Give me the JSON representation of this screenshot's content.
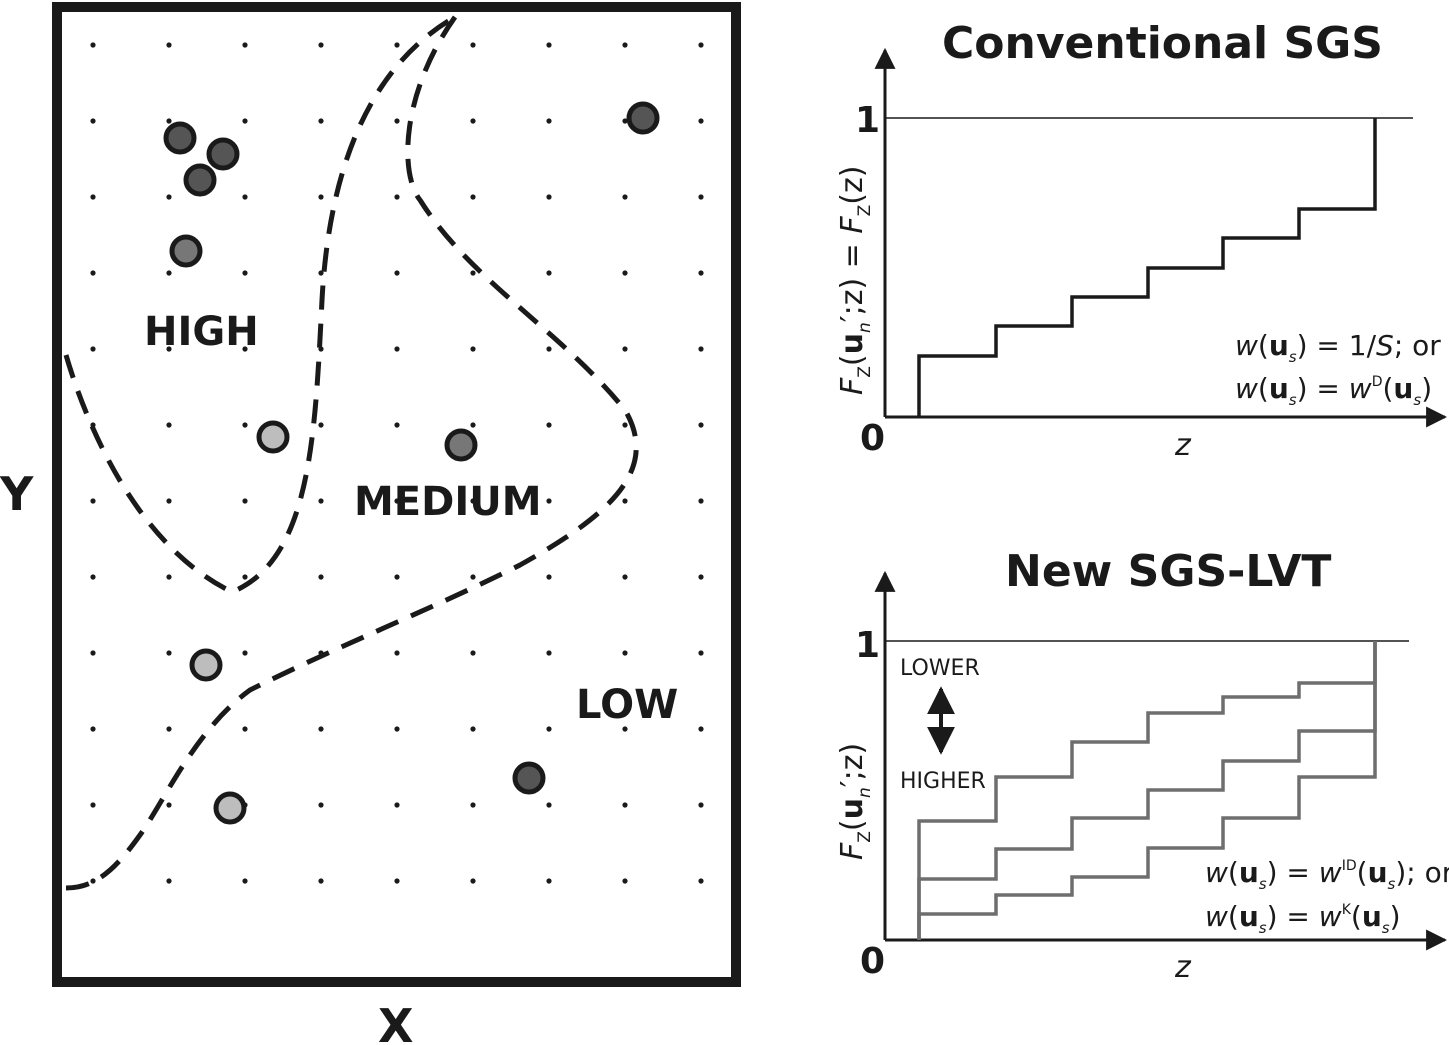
{
  "map": {
    "x_axis_label": "X",
    "y_axis_label": "Y",
    "zones": {
      "high": "HIGH",
      "medium": "MEDIUM",
      "low": "LOW"
    }
  },
  "top_panel": {
    "title": "Conventional SGS",
    "y_tick_one": "1",
    "y_tick_zero": "0",
    "x_axis_label": "z",
    "y_axis_label": {
      "f": "F",
      "zsub1": "Z",
      "open": "(",
      "u": "u",
      "usub": "n",
      "rest": "′;z) = ",
      "f2": "F",
      "zsub2": "Z",
      "end": "(z)"
    },
    "weight_line1": {
      "w": "w",
      "open": "(",
      "u": "u",
      "s": "s",
      "rest": ") = 1/",
      "S": "S",
      "tail": "; or"
    },
    "weight_line2": {
      "w": "w",
      "open": "(",
      "u": "u",
      "s": "s",
      "mid": ") = ",
      "w2": "w",
      "sup": "D",
      "open2": "(",
      "u2": "u",
      "s2": "s",
      "close": ")"
    }
  },
  "bottom_panel": {
    "title": "New SGS-LVT",
    "y_tick_one": "1",
    "y_tick_zero": "0",
    "x_axis_label": "z",
    "lower_label": "LOWER",
    "higher_label": "HIGHER",
    "y_axis_label": {
      "f": "F",
      "zsub": "Z",
      "open": "(",
      "u": "u",
      "usub": "n",
      "rest": "′;z)"
    },
    "weight_line1": {
      "w": "w",
      "open": "(",
      "u": "u",
      "s": "s",
      "mid": ") = ",
      "w2": "w",
      "sup": "ID",
      "open2": "(",
      "u2": "u",
      "s2": "s",
      "tail": "); or"
    },
    "weight_line2": {
      "w": "w",
      "open": "(",
      "u": "u",
      "s": "s",
      "mid": ") = ",
      "w2": "w",
      "sup": "K",
      "open2": "(",
      "u2": "u",
      "s2": "s",
      "close": ")"
    }
  },
  "colors": {
    "ink": "#1a1a1a",
    "dark_sample": "#555555",
    "light_sample": "#bdbdbd",
    "lvt_step": "#6e6e6e"
  }
}
